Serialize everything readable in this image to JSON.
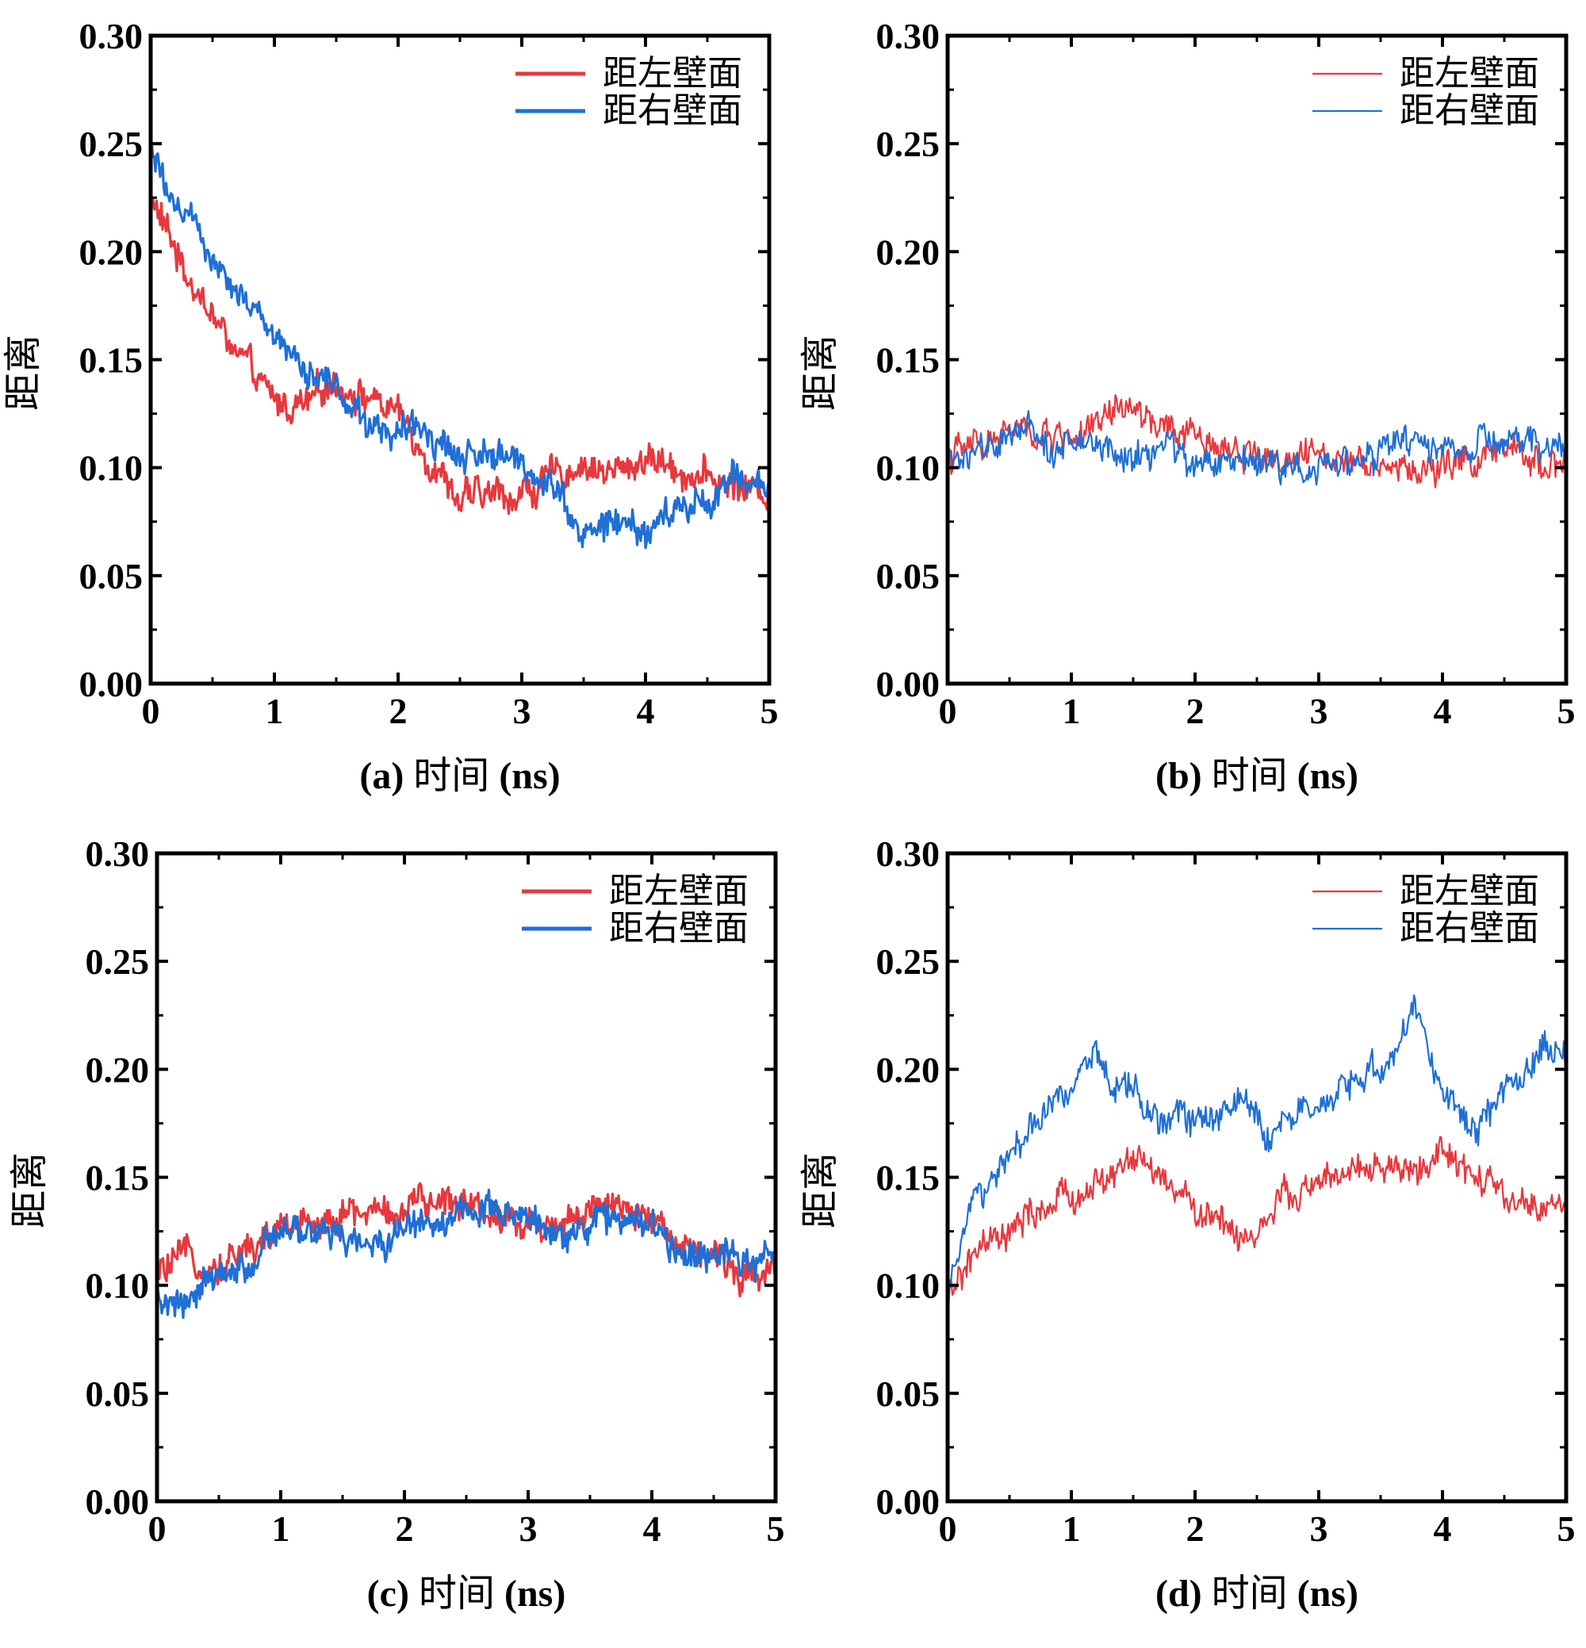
{
  "figure": {
    "series_colors": {
      "left": "#e8383d",
      "right": "#1f6fd6"
    }
  },
  "chart_data": [
    {
      "id": "a",
      "type": "line",
      "xlabel": {
        "prefix": "(a)",
        "text": "时间",
        "unit": "(ns)"
      },
      "ylabel": "距离",
      "xlim": [
        0,
        5
      ],
      "ylim": [
        0,
        0.3
      ],
      "xticks": [
        "0",
        "1",
        "2",
        "3",
        "4",
        "5"
      ],
      "yticks": [
        "0.00",
        "0.05",
        "0.10",
        "0.15",
        "0.20",
        "0.25",
        "0.30"
      ],
      "legend": {
        "position": "top-right",
        "style": "thick"
      },
      "series": [
        {
          "name": "距左壁面",
          "color": "#e8383d",
          "x": [
            0,
            0.25,
            0.5,
            0.75,
            1.0,
            1.25,
            1.5,
            1.75,
            2.0,
            2.25,
            2.5,
            2.75,
            3.0,
            3.25,
            3.5,
            3.75,
            4.0,
            4.25,
            4.5,
            4.75,
            5.0
          ],
          "y": [
            0.225,
            0.195,
            0.17,
            0.148,
            0.13,
            0.128,
            0.14,
            0.133,
            0.125,
            0.105,
            0.085,
            0.087,
            0.088,
            0.095,
            0.102,
            0.097,
            0.105,
            0.1,
            0.095,
            0.092,
            0.088
          ]
        },
        {
          "name": "距右壁面",
          "color": "#1f6fd6",
          "x": [
            0,
            0.25,
            0.5,
            0.75,
            1.0,
            1.25,
            1.5,
            1.75,
            2.0,
            2.25,
            2.5,
            2.75,
            3.0,
            3.25,
            3.5,
            3.75,
            4.0,
            4.25,
            4.5,
            4.75,
            5.0
          ],
          "y": [
            0.245,
            0.222,
            0.2,
            0.18,
            0.163,
            0.148,
            0.137,
            0.122,
            0.115,
            0.118,
            0.105,
            0.108,
            0.1,
            0.095,
            0.068,
            0.075,
            0.07,
            0.08,
            0.085,
            0.095,
            0.092
          ]
        }
      ]
    },
    {
      "id": "b",
      "type": "line",
      "xlabel": {
        "prefix": "(b)",
        "text": "时间",
        "unit": "(ns)"
      },
      "ylabel": "距离",
      "xlim": [
        0,
        5
      ],
      "ylim": [
        0,
        0.3
      ],
      "xticks": [
        "0",
        "1",
        "2",
        "3",
        "4",
        "5"
      ],
      "yticks": [
        "0.00",
        "0.05",
        "0.10",
        "0.15",
        "0.20",
        "0.25",
        "0.30"
      ],
      "legend": {
        "position": "top-right",
        "style": "thin"
      },
      "series": [
        {
          "name": "距左壁面",
          "color": "#e8383d",
          "x": [
            0,
            0.25,
            0.5,
            0.75,
            1.0,
            1.25,
            1.4,
            1.6,
            1.8,
            2.0,
            2.25,
            2.5,
            2.75,
            3.0,
            3.25,
            3.5,
            3.75,
            4.0,
            4.25,
            4.5,
            4.75,
            5.0
          ],
          "y": [
            0.105,
            0.11,
            0.117,
            0.114,
            0.115,
            0.118,
            0.128,
            0.123,
            0.115,
            0.113,
            0.11,
            0.107,
            0.103,
            0.105,
            0.108,
            0.102,
            0.098,
            0.1,
            0.104,
            0.106,
            0.104,
            0.102
          ]
        },
        {
          "name": "距右壁面",
          "color": "#1f6fd6",
          "x": [
            0,
            0.25,
            0.5,
            0.75,
            1.0,
            1.25,
            1.5,
            1.75,
            2.0,
            2.25,
            2.5,
            2.75,
            3.0,
            3.25,
            3.5,
            3.75,
            4.0,
            4.25,
            4.5,
            4.75,
            5.0
          ],
          "y": [
            0.102,
            0.106,
            0.112,
            0.114,
            0.11,
            0.108,
            0.102,
            0.112,
            0.1,
            0.103,
            0.105,
            0.1,
            0.102,
            0.104,
            0.106,
            0.112,
            0.11,
            0.108,
            0.112,
            0.109,
            0.111
          ]
        }
      ]
    },
    {
      "id": "c",
      "type": "line",
      "xlabel": {
        "prefix": "(c)",
        "text": "时间",
        "unit": "(ns)"
      },
      "ylabel": "距离",
      "xlim": [
        0,
        5
      ],
      "ylim": [
        0,
        0.3
      ],
      "xticks": [
        "0",
        "1",
        "2",
        "3",
        "4",
        "5"
      ],
      "yticks": [
        "0.00",
        "0.05",
        "0.10",
        "0.15",
        "0.20",
        "0.25",
        "0.30"
      ],
      "legend": {
        "position": "top-right",
        "style": "thick"
      },
      "series": [
        {
          "name": "距左壁面",
          "color": "#e8383d",
          "x": [
            0,
            0.25,
            0.5,
            0.75,
            1.0,
            1.25,
            1.5,
            1.75,
            2.0,
            2.25,
            2.5,
            2.75,
            3.0,
            3.25,
            3.5,
            3.75,
            4.0,
            4.25,
            4.5,
            4.75,
            5.0
          ],
          "y": [
            0.105,
            0.112,
            0.11,
            0.118,
            0.125,
            0.13,
            0.133,
            0.134,
            0.135,
            0.137,
            0.142,
            0.132,
            0.128,
            0.13,
            0.135,
            0.133,
            0.13,
            0.122,
            0.112,
            0.105,
            0.11
          ]
        },
        {
          "name": "距右壁面",
          "color": "#1f6fd6",
          "x": [
            0,
            0.25,
            0.5,
            0.75,
            1.0,
            1.25,
            1.5,
            1.75,
            2.0,
            2.25,
            2.5,
            2.75,
            3.0,
            3.25,
            3.5,
            3.75,
            4.0,
            4.25,
            4.5,
            4.75,
            5.0
          ],
          "y": [
            0.095,
            0.092,
            0.102,
            0.11,
            0.122,
            0.125,
            0.12,
            0.118,
            0.128,
            0.13,
            0.135,
            0.13,
            0.132,
            0.125,
            0.128,
            0.132,
            0.125,
            0.115,
            0.118,
            0.115,
            0.11
          ]
        }
      ]
    },
    {
      "id": "d",
      "type": "line",
      "xlabel": {
        "prefix": "(d)",
        "text": "时间",
        "unit": "(ns)"
      },
      "ylabel": "距离",
      "xlim": [
        0,
        5
      ],
      "ylim": [
        0,
        0.3
      ],
      "xticks": [
        "0",
        "1",
        "2",
        "3",
        "4",
        "5"
      ],
      "yticks": [
        "0.00",
        "0.05",
        "0.10",
        "0.15",
        "0.20",
        "0.25",
        "0.30"
      ],
      "legend": {
        "position": "top-right",
        "style": "thin"
      },
      "series": [
        {
          "name": "距左壁面",
          "color": "#e8383d",
          "x": [
            0,
            0.1,
            0.25,
            0.5,
            0.75,
            1.0,
            1.25,
            1.5,
            1.75,
            2.0,
            2.25,
            2.4,
            2.6,
            2.75,
            3.0,
            3.25,
            3.5,
            3.75,
            4.0,
            4.25,
            4.5,
            4.75,
            5.0
          ],
          "y": [
            0.09,
            0.105,
            0.115,
            0.122,
            0.135,
            0.14,
            0.148,
            0.158,
            0.148,
            0.135,
            0.13,
            0.12,
            0.133,
            0.14,
            0.148,
            0.15,
            0.155,
            0.152,
            0.16,
            0.15,
            0.14,
            0.135,
            0.14
          ]
        },
        {
          "name": "距右壁面",
          "color": "#1f6fd6",
          "x": [
            0,
            0.1,
            0.2,
            0.4,
            0.6,
            0.8,
            1.0,
            1.2,
            1.35,
            1.5,
            1.75,
            2.0,
            2.25,
            2.4,
            2.6,
            2.75,
            3.0,
            3.25,
            3.5,
            3.8,
            4.0,
            4.25,
            4.5,
            4.75,
            5.0
          ],
          "y": [
            0.1,
            0.115,
            0.14,
            0.15,
            0.165,
            0.18,
            0.195,
            0.212,
            0.185,
            0.19,
            0.175,
            0.18,
            0.175,
            0.19,
            0.17,
            0.18,
            0.175,
            0.195,
            0.2,
            0.225,
            0.19,
            0.172,
            0.19,
            0.205,
            0.21
          ]
        }
      ]
    }
  ]
}
